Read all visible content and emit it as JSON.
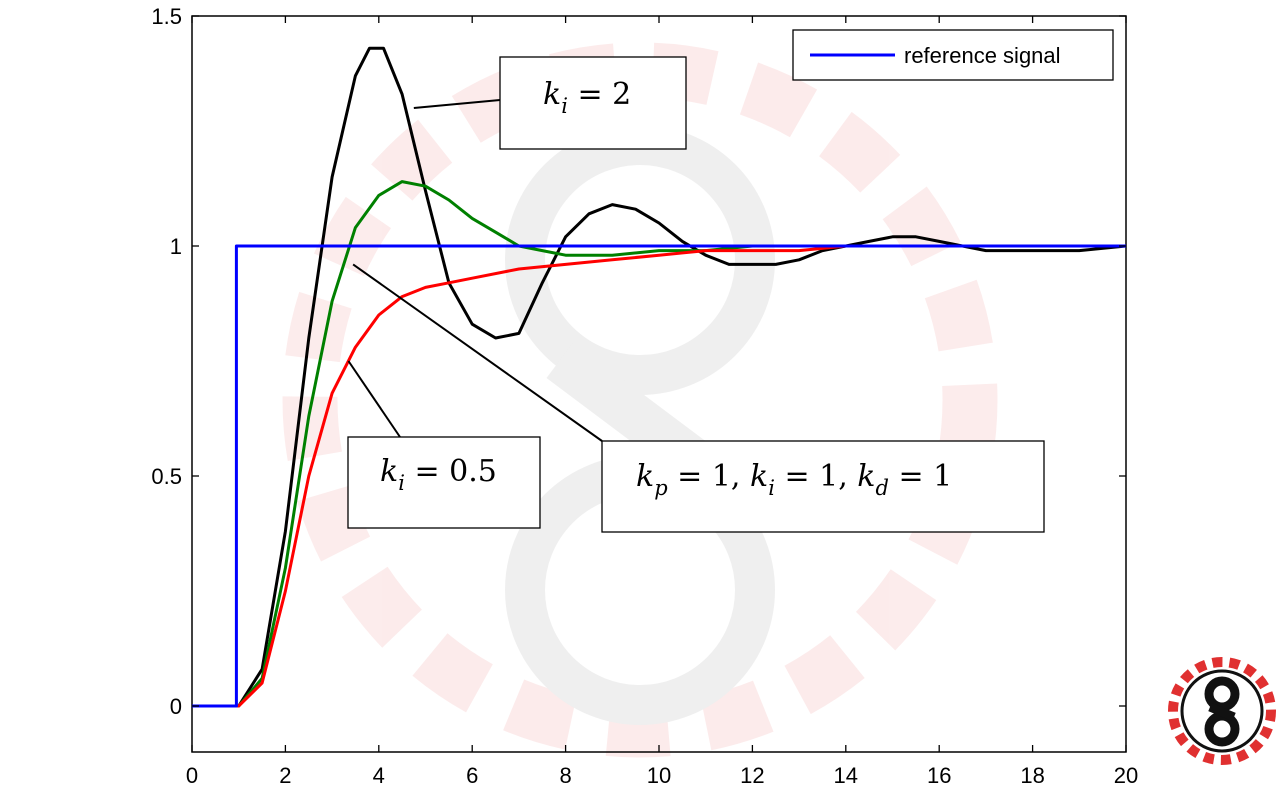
{
  "chart_data": {
    "type": "line",
    "title": "",
    "xlabel": "",
    "ylabel": "",
    "xlim": [
      0,
      20
    ],
    "ylim": [
      -0.1,
      1.5
    ],
    "xticks": [
      "0",
      "2",
      "4",
      "6",
      "8",
      "10",
      "12",
      "14",
      "16",
      "18",
      "20"
    ],
    "yticks": [
      "0",
      "0.5",
      "1",
      "1.5"
    ],
    "grid": false,
    "legend": {
      "placement": "top-right",
      "entries": [
        "reference signal"
      ]
    },
    "series": [
      {
        "name": "reference signal",
        "color": "#0000ff",
        "x": [
          0,
          0.95,
          0.95,
          20
        ],
        "y": [
          0,
          0,
          1,
          1
        ]
      },
      {
        "color": "#000000",
        "x": [
          0,
          1,
          1.5,
          2,
          2.5,
          3,
          3.5,
          3.8,
          4.1,
          4.5,
          5,
          5.5,
          6,
          6.5,
          7,
          7.5,
          8,
          8.5,
          9,
          9.5,
          10,
          10.5,
          11,
          11.5,
          12,
          12.5,
          13,
          13.5,
          14,
          14.5,
          15,
          15.5,
          16,
          16.5,
          17,
          18,
          19,
          20
        ],
        "y": [
          0,
          0,
          0.08,
          0.38,
          0.8,
          1.15,
          1.37,
          1.43,
          1.43,
          1.33,
          1.12,
          0.92,
          0.83,
          0.8,
          0.81,
          0.92,
          1.02,
          1.07,
          1.09,
          1.08,
          1.05,
          1.01,
          0.98,
          0.96,
          0.96,
          0.96,
          0.97,
          0.99,
          1.0,
          1.01,
          1.02,
          1.02,
          1.01,
          1.0,
          0.99,
          0.99,
          0.99,
          1.0
        ]
      },
      {
        "color": "#008000",
        "x": [
          0,
          1,
          1.5,
          2,
          2.5,
          3,
          3.5,
          4,
          4.5,
          5,
          5.5,
          6,
          6.5,
          7,
          7.5,
          8,
          9,
          10,
          11,
          12,
          13,
          14,
          16,
          20
        ],
        "y": [
          0,
          0,
          0.06,
          0.3,
          0.63,
          0.88,
          1.04,
          1.11,
          1.14,
          1.13,
          1.1,
          1.06,
          1.03,
          1.0,
          0.99,
          0.98,
          0.98,
          0.99,
          0.99,
          1.0,
          1.0,
          1.0,
          1.0,
          1.0
        ]
      },
      {
        "color": "#ff0000",
        "x": [
          0,
          1,
          1.5,
          2,
          2.5,
          3,
          3.5,
          4,
          4.5,
          5,
          5.5,
          6,
          7,
          8,
          9,
          10,
          11,
          12,
          13,
          14,
          15,
          16,
          18,
          20
        ],
        "y": [
          0,
          0,
          0.05,
          0.25,
          0.5,
          0.68,
          0.78,
          0.85,
          0.89,
          0.91,
          0.92,
          0.93,
          0.95,
          0.96,
          0.97,
          0.98,
          0.99,
          0.99,
          0.99,
          1.0,
          1.0,
          1.0,
          1.0,
          1.0
        ]
      }
    ],
    "annotations": [
      {
        "id": "ki2",
        "text": "k_i = 2",
        "parts": [
          "k",
          "i",
          " = 2"
        ],
        "points_to": [
          4.75,
          1.3
        ]
      },
      {
        "id": "ki05",
        "text": "k_i = 0.5",
        "parts": [
          "k",
          "i",
          " = 0.5"
        ],
        "points_to": [
          3.35,
          0.75
        ]
      },
      {
        "id": "kpid",
        "text": "k_p = 1,  k_i = 1,  k_d = 1",
        "parts": [
          "k",
          "p",
          " = 1,  ",
          "k",
          "i",
          " = 1,  ",
          "k",
          "d",
          " = 1"
        ],
        "points_to": [
          3.45,
          0.96
        ]
      }
    ]
  },
  "logo": {
    "name": "gear-logo-icon",
    "accent_color": "#e03030"
  }
}
